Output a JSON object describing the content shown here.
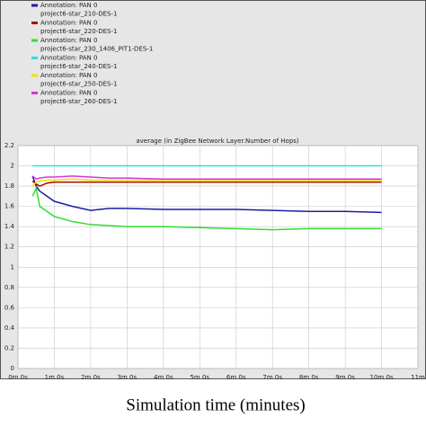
{
  "chart_data": {
    "type": "line",
    "title": "average (in ZigBee Network Layer.Number of Hops)",
    "x_label": "Simulation time (minutes)",
    "x": [
      0.4,
      0.5,
      0.6,
      0.8,
      1,
      1.5,
      2,
      2.5,
      3,
      4,
      5,
      6,
      7,
      8,
      9,
      10
    ],
    "series": [
      {
        "annotation": "Annotation: PAN 0",
        "name": "project6-star_210-DES-1",
        "color": "#1c1ca8",
        "values": [
          1.9,
          1.8,
          1.75,
          1.7,
          1.65,
          1.6,
          1.56,
          1.58,
          1.58,
          1.57,
          1.57,
          1.57,
          1.56,
          1.55,
          1.55,
          1.54
        ]
      },
      {
        "annotation": "Annotation: PAN 0",
        "name": "project6-star_220-DES-1",
        "color": "#b00000",
        "values": [
          1.85,
          1.82,
          1.8,
          1.83,
          1.84,
          1.84,
          1.84,
          1.84,
          1.84,
          1.84,
          1.84,
          1.84,
          1.84,
          1.84,
          1.84,
          1.84
        ]
      },
      {
        "annotation": "Annotation: PAN 0",
        "name": "project6-star_230_1406_PIT1-DES-1",
        "color": "#33dd33",
        "values": [
          1.7,
          1.78,
          1.6,
          1.55,
          1.5,
          1.45,
          1.42,
          1.41,
          1.4,
          1.4,
          1.39,
          1.38,
          1.37,
          1.38,
          1.38,
          1.38
        ]
      },
      {
        "annotation": "Annotation: PAN 0",
        "name": "project6-star_240-DES-1",
        "color": "#33dddd",
        "values": [
          2,
          2,
          2,
          2,
          2,
          2,
          2,
          2,
          2,
          2,
          2,
          2,
          2,
          2,
          2,
          2
        ]
      },
      {
        "annotation": "Annotation: PAN 0",
        "name": "project6-star_250-DES-1",
        "color": "#e6e600",
        "values": [
          1.8,
          1.84,
          1.85,
          1.86,
          1.86,
          1.87,
          1.86,
          1.86,
          1.86,
          1.86,
          1.86,
          1.86,
          1.86,
          1.86,
          1.86,
          1.86
        ]
      },
      {
        "annotation": "Annotation: PAN 0",
        "name": "project6-star_260-DES-1",
        "color": "#dd33dd",
        "values": [
          1.9,
          1.87,
          1.88,
          1.89,
          1.89,
          1.9,
          1.89,
          1.88,
          1.88,
          1.87,
          1.87,
          1.87,
          1.87,
          1.87,
          1.87,
          1.87
        ]
      }
    ],
    "xlim": [
      0,
      11
    ],
    "xticks": [
      {
        "value": 0,
        "label": "0m 0s"
      },
      {
        "value": 1,
        "label": "1m 0s"
      },
      {
        "value": 2,
        "label": "2m 0s"
      },
      {
        "value": 3,
        "label": "3m 0s"
      },
      {
        "value": 4,
        "label": "4m 0s"
      },
      {
        "value": 5,
        "label": "5m 0s"
      },
      {
        "value": 6,
        "label": "6m 0s"
      },
      {
        "value": 7,
        "label": "7m 0s"
      },
      {
        "value": 8,
        "label": "8m 0s"
      },
      {
        "value": 9,
        "label": "9m 0s"
      },
      {
        "value": 10,
        "label": "10m 0s"
      },
      {
        "value": 11,
        "label": "11m"
      }
    ],
    "ylim": [
      0,
      2.2
    ],
    "yticks": [
      0,
      0.2,
      0.4,
      0.6,
      0.8,
      1,
      1.2,
      1.4,
      1.6,
      1.8,
      2,
      2.2
    ],
    "grid": true
  }
}
